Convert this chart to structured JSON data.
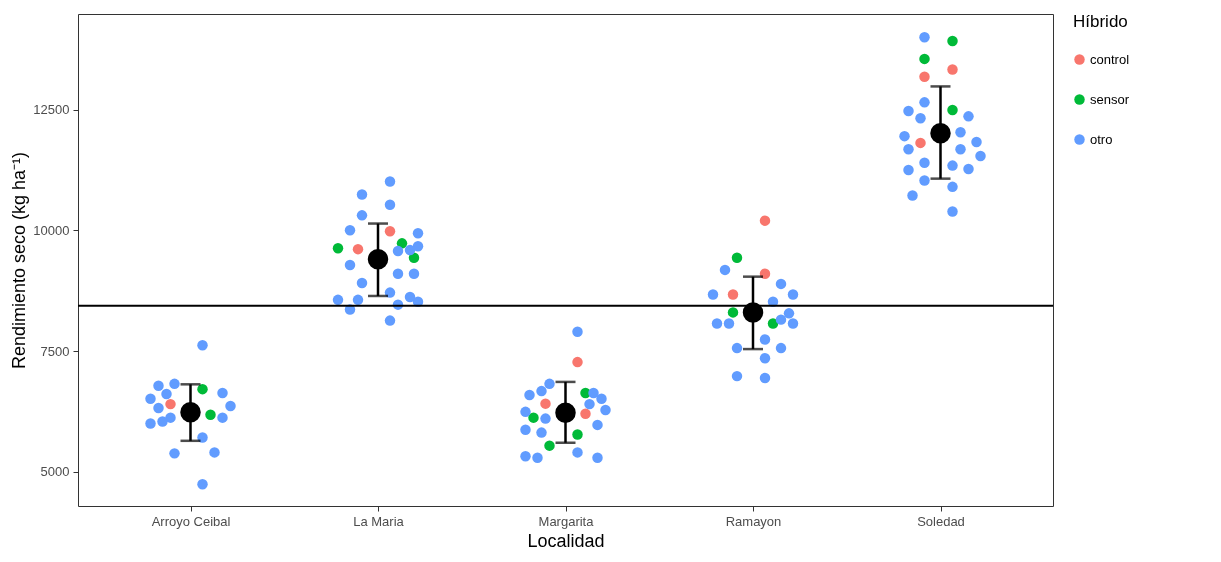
{
  "chart_data": {
    "type": "scatter",
    "xlabel": "Localidad",
    "ylabel": "Rendimiento seco (kg ha⁻¹)",
    "legend_title": "Híbrido",
    "legend": "right",
    "marker": "circle",
    "grid": false,
    "categories": [
      "Arroyo Ceibal",
      "La Maria",
      "Margarita",
      "Ramayon",
      "Soledad"
    ],
    "ylim": [
      4290,
      14480
    ],
    "yticks": [
      5000,
      7500,
      10000,
      12500
    ],
    "ref_lines": [
      {
        "axis": "y",
        "value": 8440,
        "color": "#000000"
      }
    ],
    "series": [
      {
        "name": "control",
        "color": "#f8766d",
        "x": [
          "Arroyo Ceibal",
          "La Maria",
          "La Maria",
          "Margarita",
          "Margarita",
          "Margarita",
          "Ramayon",
          "Ramayon",
          "Ramayon",
          "Soledad",
          "Soledad",
          "Soledad"
        ],
        "values": [
          6400,
          9980,
          9610,
          7270,
          6410,
          6200,
          10200,
          9100,
          8670,
          13330,
          13180,
          11810
        ]
      },
      {
        "name": "sensor",
        "color": "#00ba38",
        "x": [
          "Arroyo Ceibal",
          "Arroyo Ceibal",
          "La Maria",
          "La Maria",
          "La Maria",
          "Margarita",
          "Margarita",
          "Margarita",
          "Margarita",
          "Ramayon",
          "Ramayon",
          "Ramayon",
          "Soledad",
          "Soledad",
          "Soledad"
        ],
        "values": [
          6710,
          6180,
          9730,
          9630,
          9430,
          6630,
          6120,
          5770,
          5540,
          9430,
          8300,
          8070,
          13920,
          13550,
          12490
        ]
      },
      {
        "name": "otro",
        "color": "#619cff",
        "x": [
          "Arroyo Ceibal",
          "Arroyo Ceibal",
          "Arroyo Ceibal",
          "Arroyo Ceibal",
          "Arroyo Ceibal",
          "Arroyo Ceibal",
          "Arroyo Ceibal",
          "Arroyo Ceibal",
          "Arroyo Ceibal",
          "Arroyo Ceibal",
          "Arroyo Ceibal",
          "Arroyo Ceibal",
          "Arroyo Ceibal",
          "Arroyo Ceibal",
          "Arroyo Ceibal",
          "Arroyo Ceibal",
          "La Maria",
          "La Maria",
          "La Maria",
          "La Maria",
          "La Maria",
          "La Maria",
          "La Maria",
          "La Maria",
          "La Maria",
          "La Maria",
          "La Maria",
          "La Maria",
          "La Maria",
          "La Maria",
          "La Maria",
          "La Maria",
          "La Maria",
          "La Maria",
          "La Maria",
          "La Maria",
          "La Maria",
          "Margarita",
          "Margarita",
          "Margarita",
          "Margarita",
          "Margarita",
          "Margarita",
          "Margarita",
          "Margarita",
          "Margarita",
          "Margarita",
          "Margarita",
          "Margarita",
          "Margarita",
          "Margarita",
          "Margarita",
          "Margarita",
          "Margarita",
          "Ramayon",
          "Ramayon",
          "Ramayon",
          "Ramayon",
          "Ramayon",
          "Ramayon",
          "Ramayon",
          "Ramayon",
          "Ramayon",
          "Ramayon",
          "Ramayon",
          "Ramayon",
          "Ramayon",
          "Ramayon",
          "Ramayon",
          "Ramayon",
          "Soledad",
          "Soledad",
          "Soledad",
          "Soledad",
          "Soledad",
          "Soledad",
          "Soledad",
          "Soledad",
          "Soledad",
          "Soledad",
          "Soledad",
          "Soledad",
          "Soledad",
          "Soledad",
          "Soledad",
          "Soledad",
          "Soledad",
          "Soledad",
          "Soledad"
        ],
        "values": [
          6820,
          6630,
          6510,
          6780,
          6610,
          6360,
          6320,
          6120,
          6120,
          6000,
          6040,
          5710,
          5380,
          5400,
          4740,
          7620,
          11010,
          10740,
          10530,
          10310,
          10000,
          9940,
          9670,
          9590,
          9570,
          9280,
          9100,
          9100,
          8910,
          8710,
          8560,
          8620,
          8560,
          8460,
          8520,
          8360,
          8130,
          7900,
          6820,
          6590,
          6510,
          6400,
          6670,
          6630,
          6280,
          6240,
          6100,
          5970,
          5870,
          5810,
          5400,
          5290,
          5290,
          5320,
          9180,
          8890,
          8670,
          8670,
          8520,
          8280,
          8070,
          8070,
          8150,
          8070,
          7740,
          7560,
          7560,
          7350,
          6940,
          6980,
          14000,
          12650,
          12470,
          12360,
          12320,
          12030,
          11950,
          11830,
          11680,
          11680,
          11540,
          11400,
          11340,
          11250,
          11270,
          11030,
          10900,
          10720,
          10390
        ]
      },
      {
        "color": "#000000",
        "x": [
          "Arroyo Ceibal",
          "La Maria",
          "Margarita",
          "Ramayon",
          "Soledad"
        ],
        "values": [
          6230,
          9400,
          6220,
          8300,
          12010
        ],
        "errors": [
          [
            5640,
            6810
          ],
          [
            8640,
            10140
          ],
          [
            5600,
            6860
          ],
          [
            7540,
            9040
          ],
          [
            11070,
            12980
          ]
        ]
      }
    ]
  }
}
